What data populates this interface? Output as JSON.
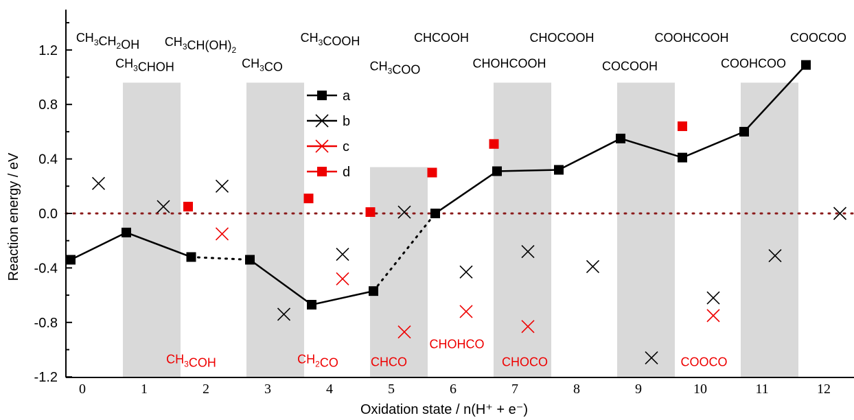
{
  "chart_data": {
    "type": "scatter",
    "xlabel": "Oxidation state / n(H⁺ + e⁻)",
    "ylabel": "Reaction energy / eV",
    "ylim": [
      -1.2,
      1.45
    ],
    "y_ticks": [
      "-1.2",
      "-0.8",
      "-0.4",
      "0.0",
      "0.4",
      "0.8",
      "1.2"
    ],
    "x_ticks": [
      "0",
      "1",
      "2",
      "3",
      "4",
      "5",
      "6",
      "7",
      "8",
      "9",
      "10",
      "11",
      "12"
    ],
    "bands": [
      {
        "x0": 1,
        "x1": 2,
        "ytop": 0.96
      },
      {
        "x0": 3,
        "x1": 4,
        "ytop": 0.96
      },
      {
        "x0": 5,
        "x1": 6,
        "ytop": 0.34
      },
      {
        "x0": 7,
        "x1": 8,
        "ytop": 0.96
      },
      {
        "x0": 9,
        "x1": 10,
        "ytop": 0.96
      },
      {
        "x0": 11,
        "x1": 12,
        "ytop": 0.96
      }
    ],
    "reference_line": {
      "y": 0.0,
      "style": "dotted",
      "color": "#8b1a1a"
    },
    "series": [
      {
        "name": "a",
        "marker": "square",
        "color": "#000000",
        "points": [
          [
            0.1,
            -0.34
          ],
          [
            1.0,
            -0.14
          ],
          [
            2.05,
            -0.32
          ],
          [
            3.0,
            -0.34
          ],
          [
            4.0,
            -0.67
          ],
          [
            5.0,
            -0.57
          ],
          [
            6.0,
            0.0
          ],
          [
            7.0,
            0.31
          ],
          [
            8.0,
            0.32
          ],
          [
            9.0,
            0.55
          ],
          [
            10.0,
            0.41
          ],
          [
            11.0,
            0.6
          ],
          [
            12.0,
            1.09
          ]
        ],
        "segments": [
          {
            "from": 0,
            "to": 1,
            "style": "solid"
          },
          {
            "from": 1,
            "to": 2,
            "style": "solid"
          },
          {
            "from": 2,
            "to": 3,
            "style": "dotted"
          },
          {
            "from": 3,
            "to": 4,
            "style": "solid"
          },
          {
            "from": 4,
            "to": 5,
            "style": "solid"
          },
          {
            "from": 5,
            "to": 6,
            "style": "dotted"
          },
          {
            "from": 6,
            "to": 7,
            "style": "solid"
          },
          {
            "from": 7,
            "to": 8,
            "style": "solid"
          },
          {
            "from": 8,
            "to": 9,
            "style": "solid"
          },
          {
            "from": 9,
            "to": 10,
            "style": "solid"
          },
          {
            "from": 10,
            "to": 11,
            "style": "solid"
          },
          {
            "from": 11,
            "to": 12,
            "style": "solid"
          }
        ]
      },
      {
        "name": "b",
        "marker": "cross",
        "color": "#000000",
        "points": [
          [
            0.55,
            0.22
          ],
          [
            1.6,
            0.05
          ],
          [
            2.55,
            0.2
          ],
          [
            3.55,
            -0.74
          ],
          [
            4.5,
            -0.3
          ],
          [
            5.5,
            0.01
          ],
          [
            6.5,
            -0.43
          ],
          [
            7.5,
            -0.28
          ],
          [
            8.55,
            -0.39
          ],
          [
            9.5,
            -1.06
          ],
          [
            10.5,
            -0.62
          ],
          [
            11.5,
            -0.31
          ],
          [
            12.55,
            -0.0
          ]
        ]
      },
      {
        "name": "c",
        "marker": "cross",
        "color": "#ee0000",
        "points": [
          [
            2.55,
            -0.15
          ],
          [
            4.5,
            -0.48
          ],
          [
            5.5,
            -0.87
          ],
          [
            6.5,
            -0.72
          ],
          [
            7.5,
            -0.83
          ],
          [
            10.5,
            -0.75
          ]
        ]
      },
      {
        "name": "d",
        "marker": "square",
        "color": "#ee0000",
        "points": [
          [
            2.0,
            0.05
          ],
          [
            3.95,
            0.11
          ],
          [
            4.95,
            0.01
          ],
          [
            5.95,
            0.3
          ],
          [
            6.95,
            0.51
          ],
          [
            10.0,
            0.64
          ]
        ]
      }
    ],
    "legend": {
      "placement": "upper-middle",
      "entries": [
        "a",
        "b",
        "c",
        "d"
      ]
    },
    "top_labels": [
      {
        "x": 0.7,
        "y": 1.26,
        "base": "CH",
        "parts": [
          [
            "CH",
            "3",
            ""
          ],
          [
            "CH",
            "2",
            ""
          ],
          [
            "OH",
            "",
            ""
          ]
        ],
        "text": "CH3CH2OH"
      },
      {
        "x": 2.2,
        "y": 1.23,
        "parts": [
          [
            "CH",
            "3",
            ""
          ],
          [
            "CH(OH)",
            "2",
            ""
          ]
        ],
        "text": "CH3CH(OH)2"
      },
      {
        "x": 4.3,
        "y": 1.26,
        "parts": [
          [
            "CH",
            "3",
            ""
          ],
          [
            "COOH",
            "",
            ""
          ]
        ],
        "text": "CH3COOH"
      },
      {
        "x": 6.1,
        "y": 1.26,
        "parts": [
          [
            "CHCOOH",
            "",
            ""
          ]
        ],
        "text": "CHCOOH"
      },
      {
        "x": 8.05,
        "y": 1.26,
        "parts": [
          [
            "CHOCOOH",
            "",
            ""
          ]
        ],
        "text": "CHOCOOH"
      },
      {
        "x": 10.15,
        "y": 1.26,
        "parts": [
          [
            "COOHCOOH",
            "",
            ""
          ]
        ],
        "text": "COOHCOOH"
      },
      {
        "x": 12.2,
        "y": 1.26,
        "parts": [
          [
            "COOCOO",
            "",
            ""
          ]
        ],
        "text": "COOCOO"
      },
      {
        "x": 1.3,
        "y": 1.07,
        "parts": [
          [
            "CH",
            "3",
            ""
          ],
          [
            "CHOH",
            "",
            ""
          ]
        ],
        "text": "CH3CHOH"
      },
      {
        "x": 3.2,
        "y": 1.07,
        "parts": [
          [
            "CH",
            "3",
            ""
          ],
          [
            "CO",
            "",
            ""
          ]
        ],
        "text": "CH3CO"
      },
      {
        "x": 5.35,
        "y": 1.05,
        "parts": [
          [
            "CH",
            "3",
            ""
          ],
          [
            "COO",
            "",
            ""
          ]
        ],
        "text": "CH3COO"
      },
      {
        "x": 7.2,
        "y": 1.07,
        "parts": [
          [
            "CHOHCOOH",
            "",
            ""
          ]
        ],
        "text": "CHOHCOOH"
      },
      {
        "x": 9.15,
        "y": 1.05,
        "parts": [
          [
            "COCOOH",
            "",
            ""
          ]
        ],
        "text": "COCOOH"
      },
      {
        "x": 11.15,
        "y": 1.07,
        "parts": [
          [
            "COOHCOO",
            "",
            ""
          ]
        ],
        "text": "COOHCOO"
      }
    ],
    "bottom_labels": [
      {
        "x": 2.05,
        "y": -1.1,
        "parts": [
          [
            "CH",
            "3",
            ""
          ],
          [
            "COH",
            "",
            ""
          ]
        ],
        "text": "CH3COH"
      },
      {
        "x": 4.1,
        "y": -1.1,
        "parts": [
          [
            "CH",
            "2",
            ""
          ],
          [
            "CO",
            "",
            ""
          ]
        ],
        "text": "CH2CO"
      },
      {
        "x": 5.25,
        "y": -1.12,
        "parts": [
          [
            "CHCO",
            "",
            ""
          ]
        ],
        "text": "CHCO"
      },
      {
        "x": 6.35,
        "y": -0.99,
        "parts": [
          [
            "CHOHCO",
            "",
            ""
          ]
        ],
        "text": "CHOHCO"
      },
      {
        "x": 7.45,
        "y": -1.12,
        "parts": [
          [
            "CHOCO",
            "",
            ""
          ]
        ],
        "text": "CHOCO"
      },
      {
        "x": 10.35,
        "y": -1.12,
        "parts": [
          [
            "COOCO",
            "",
            ""
          ]
        ],
        "text": "COOCO"
      }
    ]
  }
}
